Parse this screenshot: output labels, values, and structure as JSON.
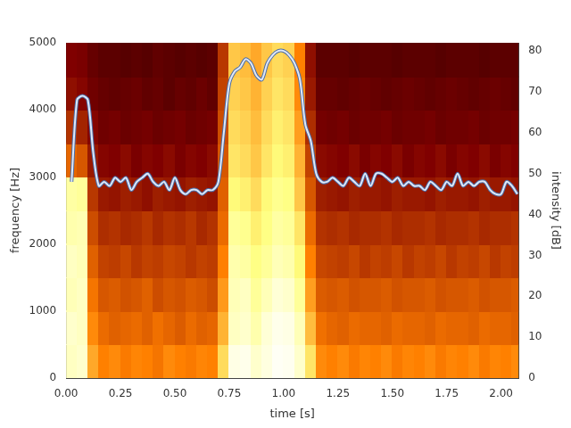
{
  "chart_data": {
    "type": "heatmap",
    "x_label": "time [s]",
    "y_label": "frequency [Hz]",
    "y2_label": "intensity [dB]",
    "xlim": [
      0,
      2.08
    ],
    "xticks": [
      {
        "value": 0,
        "label": "0.00"
      },
      {
        "value": 0.25,
        "label": "0.25"
      },
      {
        "value": 0.5,
        "label": "0.50"
      },
      {
        "value": 0.75,
        "label": "0.75"
      },
      {
        "value": 1,
        "label": "1.00"
      },
      {
        "value": 1.25,
        "label": "1.25"
      },
      {
        "value": 1.5,
        "label": "1.50"
      },
      {
        "value": 1.75,
        "label": "1.75"
      },
      {
        "value": 2,
        "label": "2.00"
      }
    ],
    "ylim": [
      0,
      5000
    ],
    "yticks": [
      0,
      1000,
      2000,
      3000,
      4000,
      5000
    ],
    "y2lim": [
      0,
      82
    ],
    "y2ticks": [
      0,
      10,
      20,
      30,
      40,
      50,
      60,
      70,
      80
    ],
    "grid": false,
    "heatmap": {
      "x": [
        0.025,
        0.075,
        0.125,
        0.175,
        0.225,
        0.275,
        0.325,
        0.375,
        0.425,
        0.475,
        0.525,
        0.575,
        0.625,
        0.675,
        0.725,
        0.775,
        0.825,
        0.875,
        0.925,
        0.975,
        1.025,
        1.075,
        1.125,
        1.175,
        1.225,
        1.275,
        1.325,
        1.375,
        1.425,
        1.475,
        1.525,
        1.575,
        1.625,
        1.675,
        1.725,
        1.775,
        1.825,
        1.875,
        1.925,
        1.975,
        2.025,
        2.075
      ],
      "y": [
        250,
        750,
        1250,
        1750,
        2250,
        2750,
        3250,
        3750,
        4250,
        4750
      ],
      "zlim": [
        0,
        100
      ],
      "values": [
        [
          88,
          90,
          86,
          88,
          84,
          82,
          45,
          35,
          28,
          25
        ],
        [
          90,
          88,
          88,
          86,
          85,
          80,
          42,
          32,
          26,
          24
        ],
        [
          58,
          52,
          48,
          44,
          40,
          36,
          30,
          26,
          22,
          20
        ],
        [
          50,
          46,
          42,
          38,
          34,
          30,
          26,
          22,
          20,
          18
        ],
        [
          52,
          44,
          43,
          37,
          35,
          29,
          25,
          23,
          19,
          18
        ],
        [
          49,
          45,
          41,
          39,
          33,
          31,
          27,
          21,
          20,
          17
        ],
        [
          51,
          46,
          42,
          36,
          34,
          30,
          24,
          22,
          21,
          18
        ],
        [
          50,
          44,
          44,
          38,
          36,
          28,
          26,
          23,
          19,
          17
        ],
        [
          48,
          47,
          40,
          37,
          33,
          31,
          25,
          21,
          20,
          19
        ],
        [
          52,
          45,
          42,
          39,
          35,
          30,
          27,
          22,
          18,
          18
        ],
        [
          50,
          43,
          41,
          38,
          34,
          29,
          24,
          23,
          20,
          17
        ],
        [
          49,
          46,
          43,
          36,
          36,
          31,
          26,
          21,
          19,
          18
        ],
        [
          51,
          44,
          42,
          38,
          33,
          30,
          25,
          22,
          21,
          17
        ],
        [
          50,
          45,
          40,
          37,
          35,
          29,
          27,
          23,
          19,
          18
        ],
        [
          68,
          60,
          55,
          50,
          46,
          44,
          42,
          40,
          38,
          36
        ],
        [
          95,
          88,
          86,
          84,
          80,
          74,
          70,
          68,
          66,
          64
        ],
        [
          96,
          90,
          88,
          82,
          78,
          72,
          68,
          66,
          64,
          62
        ],
        [
          90,
          84,
          80,
          76,
          72,
          68,
          64,
          62,
          60,
          58
        ],
        [
          94,
          92,
          86,
          80,
          76,
          74,
          70,
          68,
          66,
          64
        ],
        [
          98,
          96,
          92,
          86,
          82,
          78,
          74,
          72,
          70,
          68
        ],
        [
          97,
          95,
          90,
          84,
          80,
          76,
          72,
          70,
          68,
          66
        ],
        [
          90,
          86,
          80,
          74,
          70,
          64,
          60,
          56,
          52,
          50
        ],
        [
          70,
          62,
          56,
          50,
          46,
          42,
          38,
          34,
          30,
          28
        ],
        [
          52,
          47,
          43,
          39,
          35,
          31,
          27,
          23,
          20,
          18
        ],
        [
          50,
          45,
          42,
          38,
          34,
          30,
          26,
          22,
          20,
          18
        ],
        [
          52,
          44,
          43,
          37,
          35,
          29,
          25,
          23,
          19,
          18
        ],
        [
          49,
          46,
          41,
          39,
          33,
          31,
          27,
          21,
          20,
          17
        ],
        [
          51,
          45,
          42,
          36,
          34,
          30,
          24,
          22,
          21,
          18
        ],
        [
          50,
          45,
          42,
          38,
          34,
          30,
          26,
          22,
          20,
          18
        ],
        [
          52,
          44,
          43,
          37,
          35,
          29,
          25,
          23,
          19,
          18
        ],
        [
          49,
          46,
          41,
          39,
          33,
          31,
          27,
          21,
          20,
          17
        ],
        [
          51,
          45,
          42,
          36,
          34,
          30,
          24,
          22,
          21,
          18
        ],
        [
          50,
          45,
          42,
          38,
          34,
          30,
          26,
          22,
          20,
          18
        ],
        [
          52,
          44,
          43,
          37,
          35,
          29,
          25,
          23,
          19,
          18
        ],
        [
          49,
          46,
          41,
          39,
          33,
          31,
          27,
          21,
          20,
          17
        ],
        [
          51,
          45,
          42,
          36,
          34,
          30,
          24,
          22,
          21,
          18
        ],
        [
          50,
          45,
          42,
          38,
          34,
          30,
          26,
          22,
          20,
          18
        ],
        [
          52,
          44,
          43,
          37,
          35,
          29,
          25,
          23,
          19,
          18
        ],
        [
          49,
          46,
          41,
          39,
          33,
          31,
          27,
          21,
          20,
          17
        ],
        [
          51,
          45,
          42,
          36,
          34,
          30,
          24,
          22,
          21,
          18
        ],
        [
          50,
          45,
          42,
          38,
          34,
          30,
          26,
          22,
          20,
          18
        ],
        [
          52,
          44,
          43,
          37,
          35,
          29,
          25,
          23,
          19,
          18
        ]
      ]
    },
    "series": [
      {
        "type": "line",
        "axis": "y2",
        "color": "#dfe8f7",
        "x": [
          0.025,
          0.05,
          0.075,
          0.1,
          0.125,
          0.15,
          0.175,
          0.2,
          0.225,
          0.25,
          0.275,
          0.3,
          0.325,
          0.35,
          0.375,
          0.4,
          0.425,
          0.45,
          0.475,
          0.5,
          0.525,
          0.55,
          0.575,
          0.6,
          0.625,
          0.65,
          0.675,
          0.7,
          0.725,
          0.75,
          0.775,
          0.8,
          0.825,
          0.85,
          0.875,
          0.9,
          0.925,
          0.95,
          0.975,
          1.0,
          1.025,
          1.05,
          1.075,
          1.1,
          1.125,
          1.15,
          1.175,
          1.2,
          1.225,
          1.25,
          1.275,
          1.3,
          1.325,
          1.35,
          1.375,
          1.4,
          1.425,
          1.45,
          1.475,
          1.5,
          1.525,
          1.55,
          1.575,
          1.6,
          1.625,
          1.65,
          1.675,
          1.7,
          1.725,
          1.75,
          1.775,
          1.8,
          1.825,
          1.85,
          1.875,
          1.9,
          1.925,
          1.95,
          1.975,
          2.0,
          2.025,
          2.05,
          2.075
        ],
        "values": [
          48,
          68,
          69,
          68,
          55,
          47,
          48,
          47,
          49,
          48,
          49,
          46,
          48,
          49,
          50,
          48,
          47,
          48,
          46,
          49,
          46,
          45,
          46,
          46,
          45,
          46,
          46,
          48,
          60,
          72,
          75,
          76,
          78,
          77,
          74,
          73,
          77,
          79,
          80,
          80,
          79,
          77,
          73,
          62,
          58,
          50,
          48,
          48,
          49,
          48,
          47,
          49,
          48,
          47,
          50,
          47,
          50,
          50,
          49,
          48,
          49,
          47,
          48,
          47,
          47,
          46,
          48,
          47,
          46,
          48,
          47,
          50,
          47,
          48,
          47,
          48,
          48,
          46,
          45,
          45,
          48,
          47,
          45
        ]
      }
    ]
  }
}
